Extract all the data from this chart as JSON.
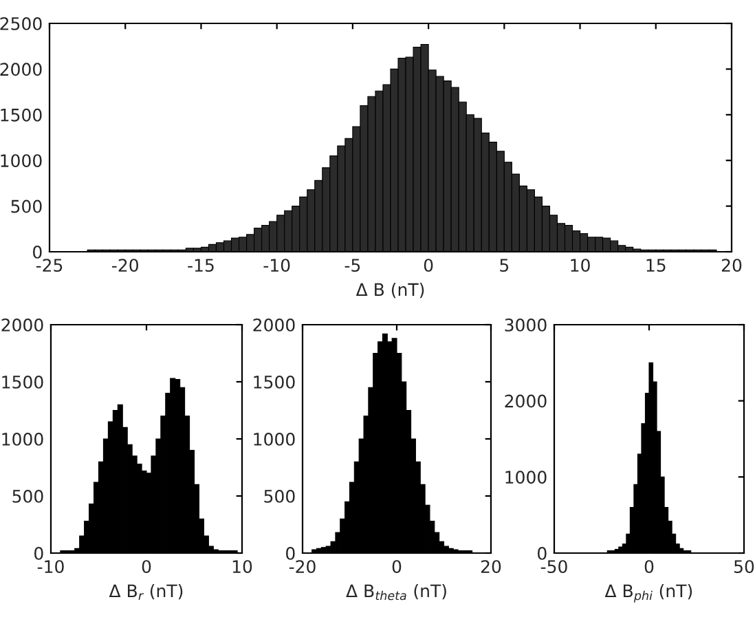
{
  "chart_data": [
    {
      "type": "histogram",
      "xlabel": "Δ B (nT)",
      "color": "#2b2b2b",
      "bins": [
        -22.5,
        -22,
        -21.5,
        -21,
        -20.5,
        -20,
        -19.5,
        -19,
        -18.5,
        -18,
        -17.5,
        -17,
        -16.5,
        -16,
        -15.5,
        -15,
        -14.5,
        -14,
        -13.5,
        -13,
        -12.5,
        -12,
        -11.5,
        -11,
        -10.5,
        -10,
        -9.5,
        -9,
        -8.5,
        -8,
        -7.5,
        -7,
        -6.5,
        -6,
        -5.5,
        -5,
        -4.5,
        -4,
        -3.5,
        -3,
        -2.5,
        -2,
        -1.5,
        -1,
        -0.5,
        0,
        0.5,
        1,
        1.5,
        2,
        2.5,
        3,
        3.5,
        4,
        4.5,
        5,
        5.5,
        6,
        6.5,
        7,
        7.5,
        8,
        8.5,
        9,
        9.5,
        10,
        10.5,
        11,
        11.5,
        12,
        12.5,
        13,
        13.5,
        14,
        14.5,
        15,
        15.5,
        16,
        16.5,
        17,
        17.5,
        18,
        18.5,
        19
      ],
      "values": [
        20,
        20,
        20,
        20,
        20,
        20,
        20,
        20,
        20,
        20,
        20,
        20,
        20,
        40,
        40,
        50,
        80,
        100,
        120,
        150,
        160,
        190,
        260,
        290,
        330,
        400,
        450,
        500,
        600,
        680,
        780,
        920,
        1050,
        1160,
        1240,
        1370,
        1600,
        1700,
        1760,
        1830,
        2000,
        2120,
        2130,
        2240,
        2270,
        1990,
        1920,
        1870,
        1800,
        1640,
        1500,
        1460,
        1300,
        1200,
        1100,
        980,
        850,
        720,
        680,
        600,
        500,
        400,
        310,
        290,
        230,
        200,
        160,
        160,
        150,
        120,
        70,
        50,
        30,
        20,
        20,
        20,
        20,
        20,
        20,
        20,
        20,
        20,
        20
      ],
      "xlim": [
        -25,
        20
      ],
      "xticks": [
        -25,
        -20,
        -15,
        -10,
        -5,
        0,
        5,
        10,
        15,
        20
      ],
      "ylim": [
        0,
        2500
      ],
      "yticks": [
        0,
        500,
        1000,
        1500,
        2000,
        2500
      ],
      "grid": false
    },
    {
      "type": "histogram",
      "xlabel": "Δ B$_{r}$ (nT)",
      "color": "#000000",
      "bins": [
        -9,
        -8.5,
        -8,
        -7.5,
        -7,
        -6.5,
        -6,
        -5.5,
        -5,
        -4.5,
        -4,
        -3.5,
        -3,
        -2.5,
        -2,
        -1.5,
        -1,
        -0.5,
        0,
        0.5,
        1,
        1.5,
        2,
        2.5,
        3,
        3.5,
        4,
        4.5,
        5,
        5.5,
        6,
        6.5,
        7,
        7.5,
        8,
        8.5,
        9,
        9.5
      ],
      "values": [
        20,
        20,
        20,
        40,
        150,
        280,
        430,
        620,
        800,
        1000,
        1150,
        1250,
        1300,
        1100,
        950,
        850,
        780,
        720,
        700,
        850,
        1000,
        1200,
        1400,
        1530,
        1520,
        1450,
        1200,
        900,
        600,
        300,
        150,
        60,
        30,
        20,
        20,
        20,
        20
      ],
      "xlim": [
        -10,
        10
      ],
      "xticks": [
        -10,
        0,
        10
      ],
      "ylim": [
        0,
        2000
      ],
      "yticks": [
        0,
        500,
        1000,
        1500,
        2000
      ],
      "grid": false
    },
    {
      "type": "histogram",
      "xlabel": "Δ B$_{theta}$ (nT)",
      "color": "#000000",
      "bins": [
        -18,
        -17,
        -16,
        -15,
        -14,
        -13,
        -12,
        -11,
        -10,
        -9,
        -8,
        -7,
        -6,
        -5,
        -4,
        -3,
        -2,
        -1,
        0,
        1,
        2,
        3,
        4,
        5,
        6,
        7,
        8,
        9,
        10,
        11,
        12,
        13,
        14,
        15,
        16
      ],
      "values": [
        30,
        40,
        50,
        60,
        100,
        180,
        300,
        450,
        620,
        800,
        1000,
        1200,
        1450,
        1750,
        1850,
        1920,
        1850,
        1880,
        1750,
        1500,
        1250,
        1000,
        800,
        600,
        420,
        280,
        180,
        100,
        60,
        40,
        30,
        20,
        20,
        20
      ],
      "xlim": [
        -20,
        20
      ],
      "xticks": [
        -20,
        0,
        20
      ],
      "ylim": [
        0,
        2000
      ],
      "yticks": [
        0,
        500,
        1000,
        1500,
        2000
      ],
      "grid": false
    },
    {
      "type": "histogram",
      "xlabel": "Δ B$_{phi}$ (nT)",
      "color": "#000000",
      "bins": [
        -22,
        -20,
        -18,
        -16,
        -14,
        -12,
        -10,
        -8,
        -6,
        -4,
        -2,
        0,
        2,
        4,
        6,
        8,
        10,
        12,
        14,
        16,
        18,
        20,
        22
      ],
      "values": [
        30,
        30,
        50,
        80,
        120,
        250,
        600,
        900,
        1300,
        1700,
        2100,
        2500,
        2250,
        1600,
        1000,
        600,
        420,
        250,
        120,
        60,
        30,
        30
      ],
      "xlim": [
        -50,
        50
      ],
      "xticks": [
        -50,
        0,
        50
      ],
      "ylim": [
        0,
        3000
      ],
      "yticks": [
        0,
        1000,
        2000,
        3000
      ],
      "grid": false
    }
  ]
}
